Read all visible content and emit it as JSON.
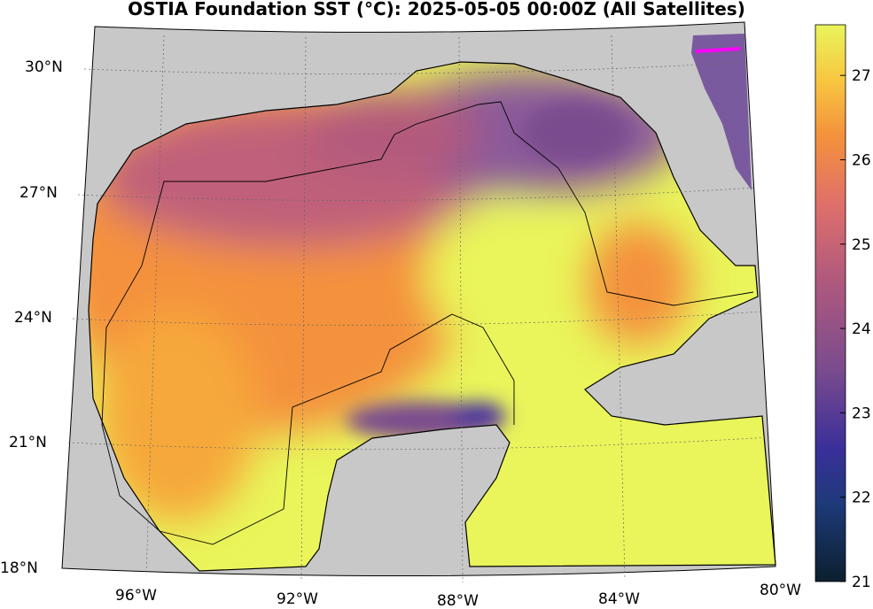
{
  "title": "OSTIA Foundation SST (°C): 2025-05-05 00:00Z (All Satellites)",
  "map": {
    "lat_labels": [
      "30°N",
      "27°N",
      "24°N",
      "21°N",
      "18°N"
    ],
    "lon_labels": [
      "96°W",
      "92°W",
      "88°W",
      "84°W",
      "80°W"
    ],
    "colorbar": {
      "min": 21,
      "max": 27.6,
      "ticks": [
        "21",
        "22",
        "23",
        "24",
        "25",
        "26",
        "27"
      ],
      "colormap": [
        "#0c1f2e",
        "#1d3a7a",
        "#3b2f9a",
        "#7a4b8e",
        "#b35a7c",
        "#e0706a",
        "#f4913c",
        "#f8c640",
        "#e9f55a"
      ]
    },
    "colors": {
      "land": "#c8c8c8",
      "warm": "#e9f55a",
      "mid": "#f4913c",
      "cool": "#8a5a9a",
      "cold": "#4a36a0",
      "marker": "#ff00ff"
    }
  }
}
